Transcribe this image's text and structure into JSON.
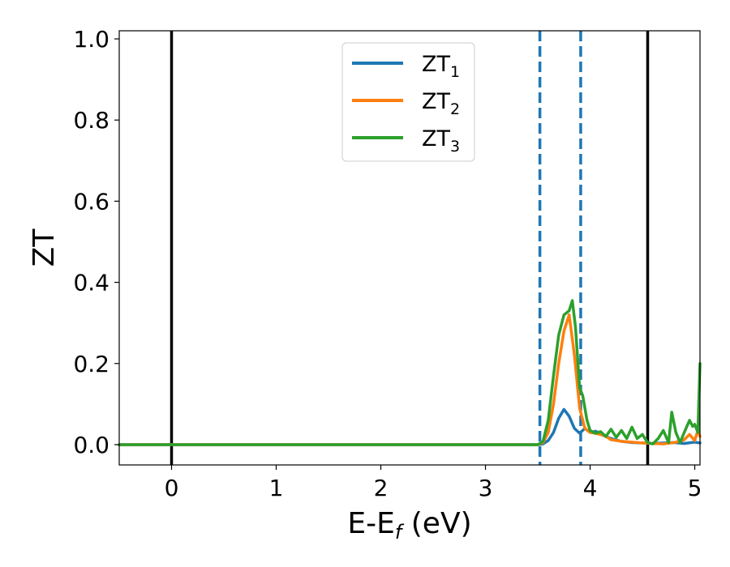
{
  "chart_data": {
    "type": "line",
    "title": "",
    "xlabel": {
      "main": "E-E",
      "sub": "f",
      "suffix": " (eV)"
    },
    "ylabel": "ZT",
    "xlim": [
      -0.5,
      5.05
    ],
    "ylim": [
      -0.05,
      1.02
    ],
    "x_ticks": [
      0,
      1,
      2,
      3,
      4,
      5
    ],
    "y_ticks": [
      0.0,
      0.2,
      0.4,
      0.6,
      0.8,
      1.0
    ],
    "x_tick_labels": [
      "0",
      "1",
      "2",
      "3",
      "4",
      "5"
    ],
    "y_tick_labels": [
      "0.0",
      "0.2",
      "0.4",
      "0.6",
      "0.8",
      "1.0"
    ],
    "grid": false,
    "legend_position": "top-center",
    "vlines_solid": [
      0.0,
      4.55
    ],
    "vlines_dashed": [
      3.52,
      3.91
    ],
    "series": [
      {
        "name": "ZT",
        "name_sub": "1",
        "color": "#1f77b4",
        "x": [
          -0.5,
          3.5,
          3.55,
          3.6,
          3.65,
          3.7,
          3.75,
          3.8,
          3.85,
          3.9,
          3.95,
          4.0,
          4.05,
          4.1,
          4.15,
          4.2,
          4.3,
          4.4,
          4.5,
          4.6,
          4.7,
          4.8,
          4.9,
          5.0,
          5.05
        ],
        "y": [
          0.0,
          0.0,
          0.002,
          0.01,
          0.03,
          0.065,
          0.087,
          0.07,
          0.04,
          0.028,
          0.04,
          0.03,
          0.033,
          0.028,
          0.02,
          0.015,
          0.008,
          0.005,
          0.004,
          0.003,
          0.004,
          0.005,
          0.003,
          0.006,
          0.004
        ]
      },
      {
        "name": "ZT",
        "name_sub": "2",
        "color": "#ff7f0e",
        "x": [
          -0.5,
          3.5,
          3.55,
          3.6,
          3.65,
          3.7,
          3.75,
          3.8,
          3.85,
          3.9,
          3.95,
          4.0,
          4.05,
          4.1,
          4.15,
          4.2,
          4.3,
          4.4,
          4.5,
          4.6,
          4.7,
          4.8,
          4.85,
          4.9,
          4.95,
          5.0,
          5.03,
          5.05
        ],
        "y": [
          0.0,
          0.0,
          0.005,
          0.03,
          0.1,
          0.2,
          0.28,
          0.32,
          0.22,
          0.09,
          0.04,
          0.03,
          0.028,
          0.025,
          0.02,
          0.012,
          0.008,
          0.006,
          0.004,
          0.003,
          0.002,
          0.005,
          0.008,
          0.012,
          0.025,
          0.01,
          0.035,
          0.02
        ]
      },
      {
        "name": "ZT",
        "name_sub": "3",
        "color": "#2ca02c",
        "x": [
          -0.5,
          3.5,
          3.55,
          3.6,
          3.65,
          3.7,
          3.75,
          3.8,
          3.83,
          3.86,
          3.9,
          3.93,
          3.97,
          4.0,
          4.05,
          4.1,
          4.15,
          4.2,
          4.25,
          4.3,
          4.35,
          4.4,
          4.45,
          4.5,
          4.55,
          4.6,
          4.65,
          4.7,
          4.75,
          4.78,
          4.82,
          4.86,
          4.9,
          4.95,
          4.98,
          5.0,
          5.03,
          5.05
        ],
        "y": [
          0.0,
          0.0,
          0.008,
          0.06,
          0.17,
          0.27,
          0.32,
          0.33,
          0.355,
          0.29,
          0.14,
          0.12,
          0.06,
          0.035,
          0.028,
          0.032,
          0.02,
          0.038,
          0.018,
          0.035,
          0.015,
          0.043,
          0.015,
          0.025,
          0.005,
          0.002,
          0.015,
          0.035,
          0.005,
          0.08,
          0.03,
          0.005,
          0.03,
          0.06,
          0.045,
          0.05,
          0.03,
          0.2
        ]
      }
    ]
  }
}
